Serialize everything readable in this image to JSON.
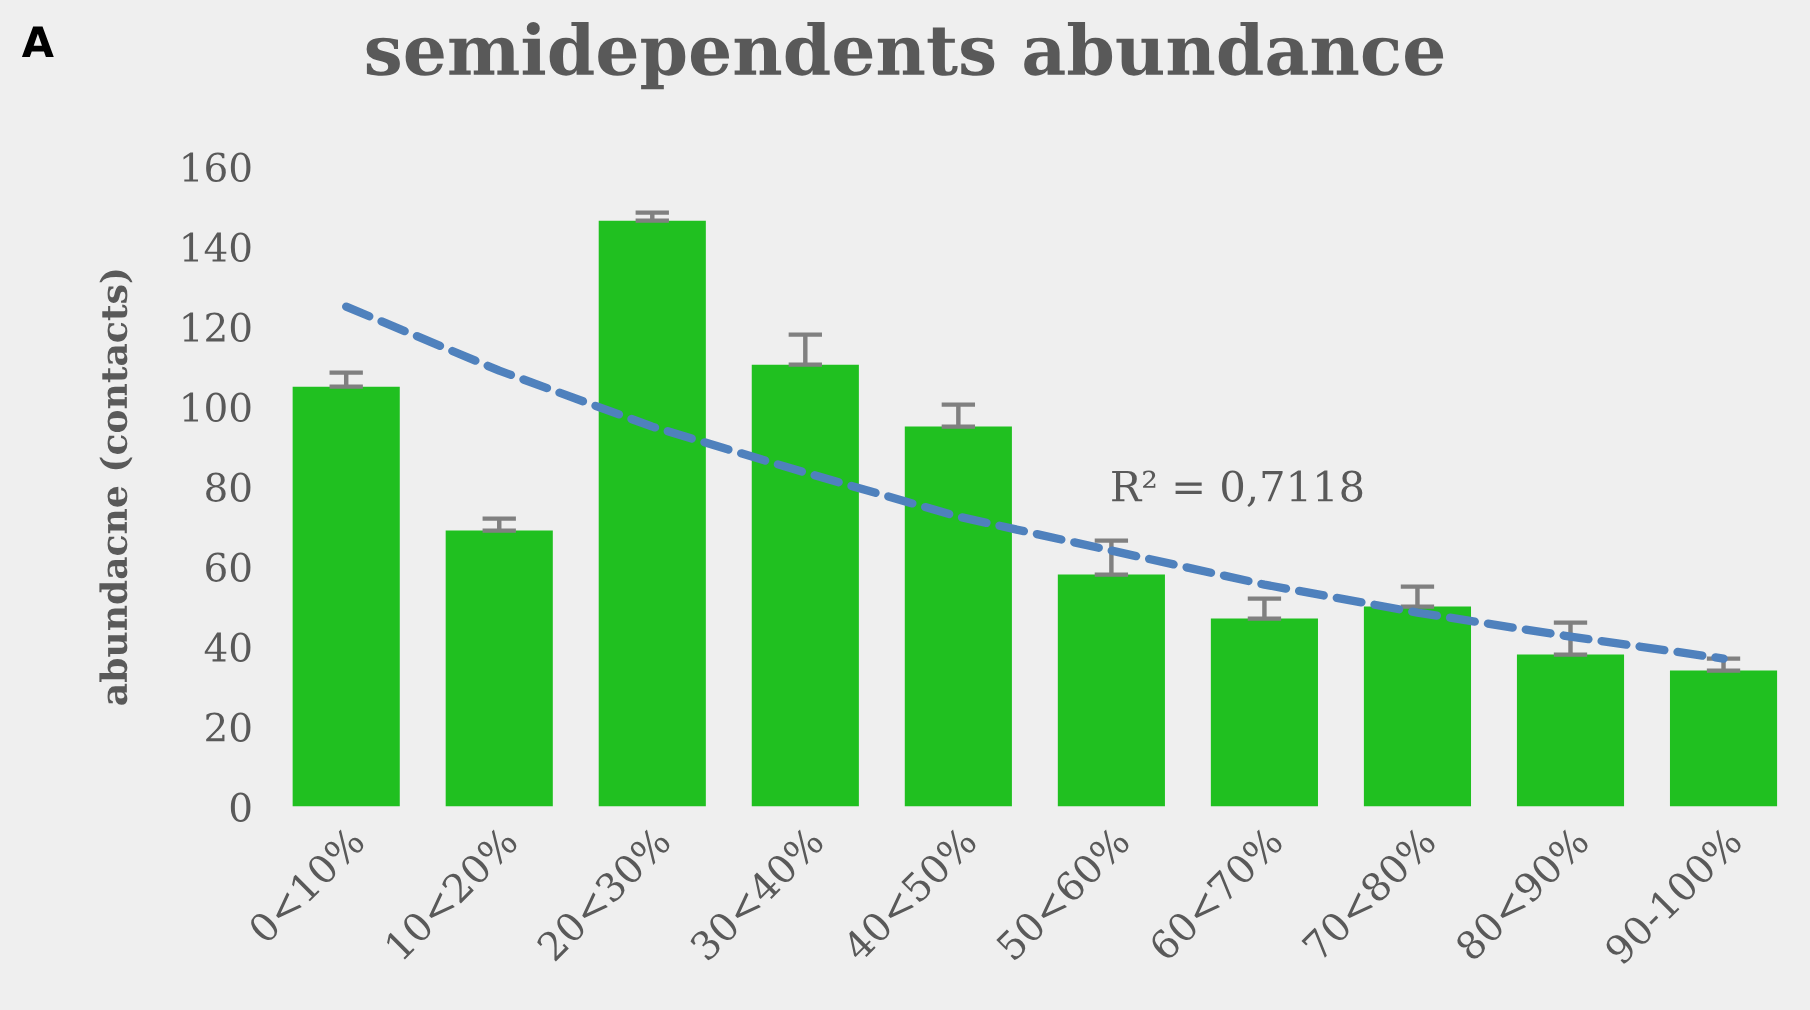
{
  "chart_data": {
    "type": "bar",
    "title": "semidependents abundance",
    "ylabel": "abundacne (contacts)",
    "categories": [
      "0<10%",
      "10<20%",
      "20<30%",
      "30<40%",
      "40<50%",
      "50<60%",
      "60<70%",
      "70<80%",
      "80<90%",
      "90-100%"
    ],
    "series": [
      {
        "color": "#20c020",
        "values": [
          105,
          69,
          146.5,
          110.5,
          95,
          58,
          47,
          50,
          38,
          34
        ],
        "errors": [
          [
            105,
            108.5
          ],
          [
            69,
            72
          ],
          [
            146.5,
            148.5
          ],
          [
            110.5,
            118
          ],
          [
            95,
            100.5
          ],
          [
            58,
            66.5
          ],
          [
            47,
            52
          ],
          [
            50,
            55
          ],
          [
            38,
            46
          ],
          [
            34,
            37
          ]
        ]
      },
      {
        "type": "line",
        "color": "#4f81bd",
        "marker": "none",
        "line_style": "dashed",
        "values": [
          125,
          109,
          95,
          83.5,
          72.5,
          64,
          55.5,
          48.5,
          42.5,
          37
        ]
      }
    ],
    "ylim": [
      0,
      160
    ],
    "yticks": [
      0,
      20,
      40,
      60,
      80,
      100,
      120,
      140,
      160
    ],
    "annotations": [
      "A",
      "R² = 0,7118"
    ]
  }
}
